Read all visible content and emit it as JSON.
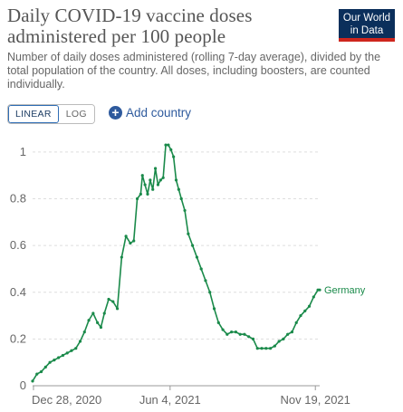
{
  "header": {
    "title": "Daily COVID-19 vaccine doses administered per 100 people",
    "subtitle": "Number of daily doses administered (rolling 7-day average), divided by the total population of the country. All doses, including boosters, are counted individually.",
    "logo_line1": "Our World",
    "logo_line2": "in Data"
  },
  "controls": {
    "linear_label": "LINEAR",
    "log_label": "LOG",
    "add_country_label": "Add country"
  },
  "colors": {
    "series": "#1a8a4a",
    "logo_bg": "#0b2f5b",
    "logo_accent": "#ce261e",
    "link": "#2e5a9d"
  },
  "chart_data": {
    "type": "line",
    "title": "Daily COVID-19 vaccine doses administered per 100 people",
    "xlabel": "",
    "ylabel": "",
    "x_ticks": [
      "Dec 28, 2020",
      "Jun 4, 2021",
      "Nov 19, 2021"
    ],
    "y_ticks": [
      0,
      0.2,
      0.4,
      0.6,
      0.8,
      1
    ],
    "ylim": [
      0,
      1.05
    ],
    "grid": "horizontal-dashed",
    "series": [
      {
        "name": "Germany",
        "x": [
          "2020-12-27",
          "2021-01-01",
          "2021-01-06",
          "2021-01-11",
          "2021-01-16",
          "2021-01-21",
          "2021-01-26",
          "2021-01-31",
          "2021-02-05",
          "2021-02-10",
          "2021-02-15",
          "2021-02-20",
          "2021-02-25",
          "2021-03-02",
          "2021-03-07",
          "2021-03-12",
          "2021-03-16",
          "2021-03-20",
          "2021-03-25",
          "2021-03-30",
          "2021-04-04",
          "2021-04-09",
          "2021-04-14",
          "2021-04-19",
          "2021-04-23",
          "2021-04-27",
          "2021-05-01",
          "2021-05-03",
          "2021-05-06",
          "2021-05-09",
          "2021-05-12",
          "2021-05-15",
          "2021-05-18",
          "2021-05-21",
          "2021-05-24",
          "2021-05-27",
          "2021-05-30",
          "2021-06-02",
          "2021-06-05",
          "2021-06-08",
          "2021-06-11",
          "2021-06-14",
          "2021-06-17",
          "2021-06-21",
          "2021-06-25",
          "2021-06-30",
          "2021-07-05",
          "2021-07-10",
          "2021-07-15",
          "2021-07-20",
          "2021-07-25",
          "2021-07-30",
          "2021-08-04",
          "2021-08-09",
          "2021-08-14",
          "2021-08-19",
          "2021-08-24",
          "2021-08-29",
          "2021-09-03",
          "2021-09-08",
          "2021-09-13",
          "2021-09-18",
          "2021-09-23",
          "2021-09-28",
          "2021-10-03",
          "2021-10-08",
          "2021-10-13",
          "2021-10-18",
          "2021-10-23",
          "2021-10-28",
          "2021-11-02",
          "2021-11-07",
          "2021-11-12",
          "2021-11-17",
          "2021-11-22",
          "2021-11-24"
        ],
        "values": [
          0.02,
          0.05,
          0.06,
          0.08,
          0.1,
          0.11,
          0.12,
          0.13,
          0.14,
          0.15,
          0.16,
          0.19,
          0.23,
          0.28,
          0.31,
          0.27,
          0.25,
          0.31,
          0.37,
          0.36,
          0.33,
          0.55,
          0.64,
          0.61,
          0.62,
          0.8,
          0.82,
          0.9,
          0.86,
          0.82,
          0.88,
          0.84,
          0.93,
          0.86,
          0.88,
          0.89,
          1.03,
          1.03,
          1.01,
          0.98,
          0.88,
          0.84,
          0.8,
          0.75,
          0.65,
          0.6,
          0.55,
          0.5,
          0.45,
          0.4,
          0.33,
          0.27,
          0.24,
          0.22,
          0.23,
          0.23,
          0.22,
          0.22,
          0.21,
          0.2,
          0.16,
          0.16,
          0.16,
          0.16,
          0.17,
          0.19,
          0.2,
          0.22,
          0.23,
          0.27,
          0.3,
          0.32,
          0.34,
          0.38,
          0.41,
          0.41
        ]
      }
    ]
  }
}
